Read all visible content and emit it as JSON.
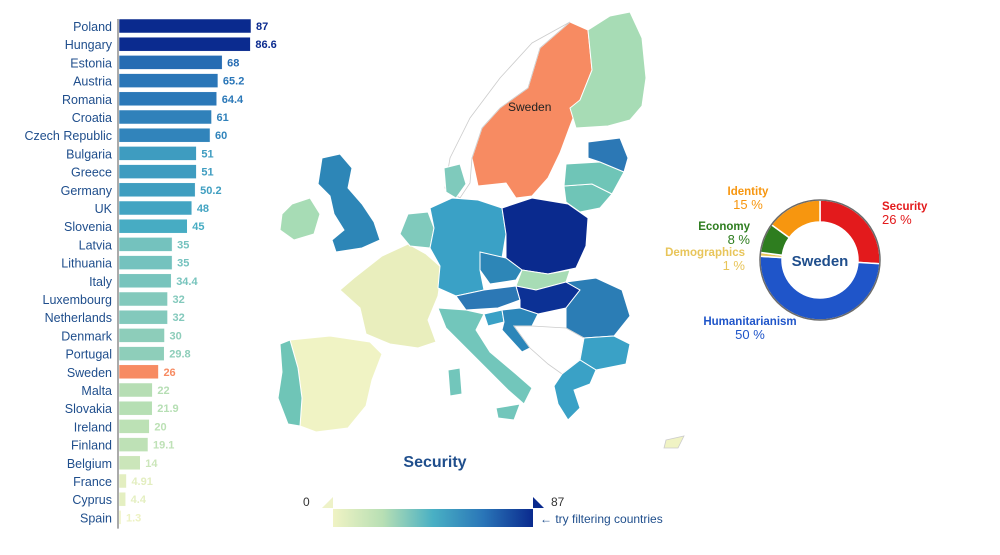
{
  "chart_data": [
    {
      "type": "bar",
      "orientation": "horizontal",
      "categories": [
        "Poland",
        "Hungary",
        "Estonia",
        "Austria",
        "Romania",
        "Croatia",
        "Czech Republic",
        "Bulgaria",
        "Greece",
        "Germany",
        "UK",
        "Slovenia",
        "Latvia",
        "Lithuania",
        "Italy",
        "Luxembourg",
        "Netherlands",
        "Denmark",
        "Portugal",
        "Sweden",
        "Malta",
        "Slovakia",
        "Ireland",
        "Finland",
        "Belgium",
        "France",
        "Cyprus",
        "Spain"
      ],
      "values": [
        87,
        86.6,
        68,
        65.2,
        64.4,
        61,
        60,
        51,
        51,
        50.2,
        48,
        45,
        35,
        35,
        34.4,
        32,
        32,
        30,
        29.8,
        26,
        22,
        21.9,
        20,
        19.1,
        14,
        4.91,
        4.4,
        1.3
      ],
      "value_labels": [
        "87",
        "86.6",
        "68",
        "65.2",
        "64.4",
        "61",
        "60",
        "51",
        "51",
        "50.2",
        "48",
        "45",
        "35",
        "35",
        "34.4",
        "32",
        "32",
        "30",
        "29.8",
        "26",
        "22",
        "21.9",
        "20",
        "19.1",
        "14",
        "4.91",
        "4.4",
        "1.3"
      ],
      "highlighted": "Sweden",
      "xlim": [
        0,
        87
      ]
    },
    {
      "type": "pie",
      "style": "donut",
      "center_label": "Sweden",
      "slices": [
        {
          "label": "Security",
          "value": 26,
          "value_label": "26 %",
          "color": "#e31a1c"
        },
        {
          "label": "Humanitarianism",
          "value": 50,
          "value_label": "50 %",
          "color": "#1f55c9"
        },
        {
          "label": "Demographics",
          "value": 1,
          "value_label": "1 %",
          "color": "#e8c55a"
        },
        {
          "label": "Economy",
          "value": 8,
          "value_label": "8 %",
          "color": "#2e7d1f"
        },
        {
          "label": "Identity",
          "value": 15,
          "value_label": "15 %",
          "color": "#f7960f"
        }
      ]
    }
  ],
  "map": {
    "selected_label": "Sweden",
    "legend_title": "Security",
    "scale_min": "0",
    "scale_max": "87",
    "hint": "← try filtering countries"
  },
  "colors": {
    "highlight": "#f78b62",
    "scale": [
      "#f0f3c4",
      "#b7dfb4",
      "#49b0c4",
      "#2a76b8",
      "#0a2a8e"
    ],
    "label_text": "#1f4e8c"
  }
}
